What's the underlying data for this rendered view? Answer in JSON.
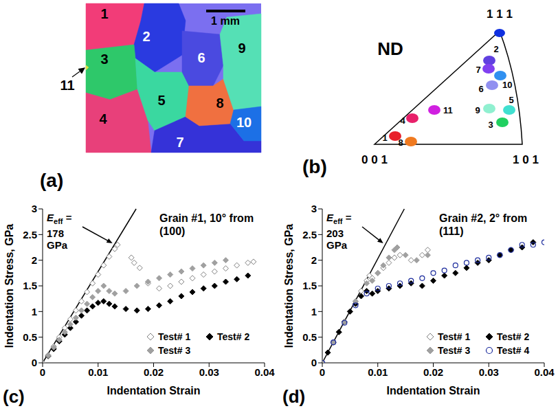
{
  "grain_map": {
    "panel": "(a)",
    "scale_bar": "1 mm",
    "grains": [
      {
        "label": "1",
        "color": "#f23c78"
      },
      {
        "label": "2",
        "color": "#2a3ae0"
      },
      {
        "label": "3",
        "color": "#2ec86a"
      },
      {
        "label": "4",
        "color": "#e8407a"
      },
      {
        "label": "5",
        "color": "#3ad8a0"
      },
      {
        "label": "6",
        "color": "#4a4ae0"
      },
      {
        "label": "7",
        "color": "#3532d8"
      },
      {
        "label": "8",
        "color": "#f07040"
      },
      {
        "label": "9",
        "color": "#55e0b5"
      },
      {
        "label": "10",
        "color": "#1c70e6"
      },
      {
        "label": "11",
        "color": "#e0e040"
      }
    ]
  },
  "pole_figure": {
    "panel": "(b)",
    "direction": "ND",
    "corners": [
      "0 0 1",
      "1 0 1",
      "1 1 1"
    ],
    "spots": [
      {
        "label": "1",
        "color": "#e8202a"
      },
      {
        "label": "2",
        "color": "#6040e0"
      },
      {
        "label": "3",
        "color": "#20d060"
      },
      {
        "label": "4",
        "color": "#e8206a"
      },
      {
        "label": "5",
        "color": "#40e0d0"
      },
      {
        "label": "6",
        "color": "#9090f0"
      },
      {
        "label": "7",
        "color": "#8040f0"
      },
      {
        "label": "8",
        "color": "#f07a20"
      },
      {
        "label": "9",
        "color": "#90f0d0"
      },
      {
        "label": "10",
        "color": "#3090f0"
      },
      {
        "label": "11",
        "color": "#d020e0"
      }
    ]
  },
  "chart_data": [
    {
      "panel": "(c)",
      "type": "scatter",
      "x_label": "Indentation Strain",
      "y_label": "Indentation Stress, GPa",
      "annotation": "Grain #1, 10° from (100)",
      "modulus": {
        "symbol": "E",
        "subscript": "eff",
        "relation": "=",
        "value": 178,
        "unit": "GPa"
      },
      "xlim": [
        0,
        0.04
      ],
      "xticks": [
        0,
        0.01,
        0.02,
        0.03,
        0.04
      ],
      "ylim": [
        0,
        3
      ],
      "yticks": [
        0,
        0.5,
        1,
        1.5,
        2,
        2.5,
        3
      ],
      "legend": "lower right",
      "series": [
        {
          "name": "Test# 1",
          "color": "#808080",
          "marker": "open_diamond",
          "x": [
            0,
            0.001,
            0.002,
            0.003,
            0.004,
            0.005,
            0.006,
            0.007,
            0.008,
            0.009,
            0.01,
            0.011,
            0.012,
            0.013,
            0.0135,
            0.016,
            0.0165,
            0.0175,
            0.019,
            0.021,
            0.023,
            0.025,
            0.027,
            0.029,
            0.031,
            0.033,
            0.035,
            0.037,
            0.038
          ],
          "values": [
            0,
            0.15,
            0.32,
            0.5,
            0.68,
            0.85,
            1.02,
            1.2,
            1.38,
            1.55,
            1.72,
            1.9,
            2.07,
            2.22,
            2.3,
            2.05,
            1.95,
            1.85,
            1.55,
            1.45,
            1.5,
            1.58,
            1.65,
            1.72,
            1.78,
            1.84,
            1.9,
            1.95,
            1.97
          ]
        },
        {
          "name": "Test# 2",
          "color": "#000000",
          "marker": "diamond",
          "x": [
            0,
            0.001,
            0.002,
            0.003,
            0.004,
            0.005,
            0.006,
            0.007,
            0.008,
            0.009,
            0.01,
            0.011,
            0.012,
            0.013,
            0.015,
            0.017,
            0.019,
            0.021,
            0.023,
            0.025,
            0.027,
            0.029,
            0.031,
            0.033,
            0.035,
            0.037
          ],
          "values": [
            0,
            0.13,
            0.27,
            0.42,
            0.55,
            0.68,
            0.8,
            0.92,
            1.02,
            1.1,
            1.17,
            1.2,
            1.15,
            1.1,
            1.05,
            1.02,
            1.05,
            1.12,
            1.2,
            1.3,
            1.38,
            1.45,
            1.5,
            1.58,
            1.63,
            1.7
          ]
        },
        {
          "name": "Test# 3",
          "color": "#a0a0a0",
          "marker": "diamond",
          "x": [
            0,
            0.001,
            0.002,
            0.003,
            0.004,
            0.005,
            0.006,
            0.007,
            0.008,
            0.009,
            0.01,
            0.011,
            0.012,
            0.013,
            0.015,
            0.017,
            0.019,
            0.021,
            0.023,
            0.025,
            0.027,
            0.029,
            0.031,
            0.033
          ],
          "values": [
            0,
            0.14,
            0.3,
            0.45,
            0.6,
            0.75,
            0.88,
            1.02,
            1.15,
            1.28,
            1.4,
            1.5,
            1.4,
            1.35,
            1.4,
            1.5,
            1.58,
            1.65,
            1.72,
            1.78,
            1.84,
            1.9,
            1.95,
            2.0
          ]
        }
      ]
    },
    {
      "panel": "(d)",
      "type": "scatter",
      "x_label": "Indentation Strain",
      "y_label": "Indentation Stress, GPa",
      "annotation": "Grain #2, 2° from (111)",
      "modulus": {
        "symbol": "E",
        "subscript": "eff",
        "relation": "=",
        "value": 203,
        "unit": "GPa"
      },
      "xlim": [
        0,
        0.04
      ],
      "xticks": [
        0,
        0.01,
        0.02,
        0.03,
        0.04
      ],
      "ylim": [
        0,
        3
      ],
      "yticks": [
        0,
        0.5,
        1,
        1.5,
        2,
        2.5,
        3
      ],
      "legend": "lower right",
      "series": [
        {
          "name": "Test# 1",
          "color": "#808080",
          "marker": "open_diamond",
          "x": [
            0,
            0.001,
            0.002,
            0.003,
            0.004,
            0.005,
            0.006,
            0.007,
            0.008,
            0.0085,
            0.009,
            0.01,
            0.011,
            0.012,
            0.013,
            0.014,
            0.016,
            0.018,
            0.019
          ],
          "values": [
            0,
            0.2,
            0.4,
            0.6,
            0.8,
            1.0,
            1.2,
            1.4,
            1.6,
            1.7,
            1.65,
            1.75,
            1.85,
            1.95,
            2.05,
            2.1,
            2.0,
            2.1,
            2.2
          ]
        },
        {
          "name": "Test# 2",
          "color": "#000000",
          "marker": "diamond",
          "x": [
            0,
            0.001,
            0.002,
            0.003,
            0.004,
            0.005,
            0.006,
            0.007,
            0.008,
            0.009,
            0.01,
            0.012,
            0.014,
            0.016,
            0.018,
            0.02,
            0.022,
            0.024,
            0.026,
            0.028,
            0.03,
            0.032,
            0.034,
            0.036,
            0.038
          ],
          "values": [
            0,
            0.2,
            0.4,
            0.6,
            0.8,
            1.0,
            1.15,
            1.3,
            1.4,
            1.35,
            1.4,
            1.45,
            1.5,
            1.55,
            1.5,
            1.6,
            1.7,
            1.75,
            1.85,
            1.95,
            2.0,
            2.1,
            2.2,
            2.25,
            2.35
          ]
        },
        {
          "name": "Test# 3",
          "color": "#a0a0a0",
          "marker": "diamond",
          "x": [
            0,
            0.002,
            0.004,
            0.006,
            0.008,
            0.009,
            0.01,
            0.011,
            0.012,
            0.013,
            0.0135,
            0.015,
            0.017,
            0.019
          ],
          "values": [
            0,
            0.4,
            0.8,
            1.2,
            1.55,
            1.6,
            1.75,
            1.9,
            2.05,
            2.2,
            2.25,
            2.1,
            2.0,
            2.1
          ]
        },
        {
          "name": "Test# 4",
          "color": "#1a2a9c",
          "marker": "open_circle",
          "x": [
            0,
            0.002,
            0.004,
            0.006,
            0.008,
            0.01,
            0.012,
            0.014,
            0.016,
            0.018,
            0.02,
            0.022,
            0.024,
            0.026,
            0.028,
            0.03,
            0.032,
            0.034,
            0.036,
            0.038,
            0.04
          ],
          "values": [
            0,
            0.4,
            0.78,
            1.12,
            1.35,
            1.45,
            1.5,
            1.55,
            1.6,
            1.65,
            1.75,
            1.8,
            1.9,
            1.95,
            2.0,
            2.05,
            2.1,
            2.2,
            2.3,
            2.3,
            2.35
          ]
        }
      ]
    }
  ]
}
